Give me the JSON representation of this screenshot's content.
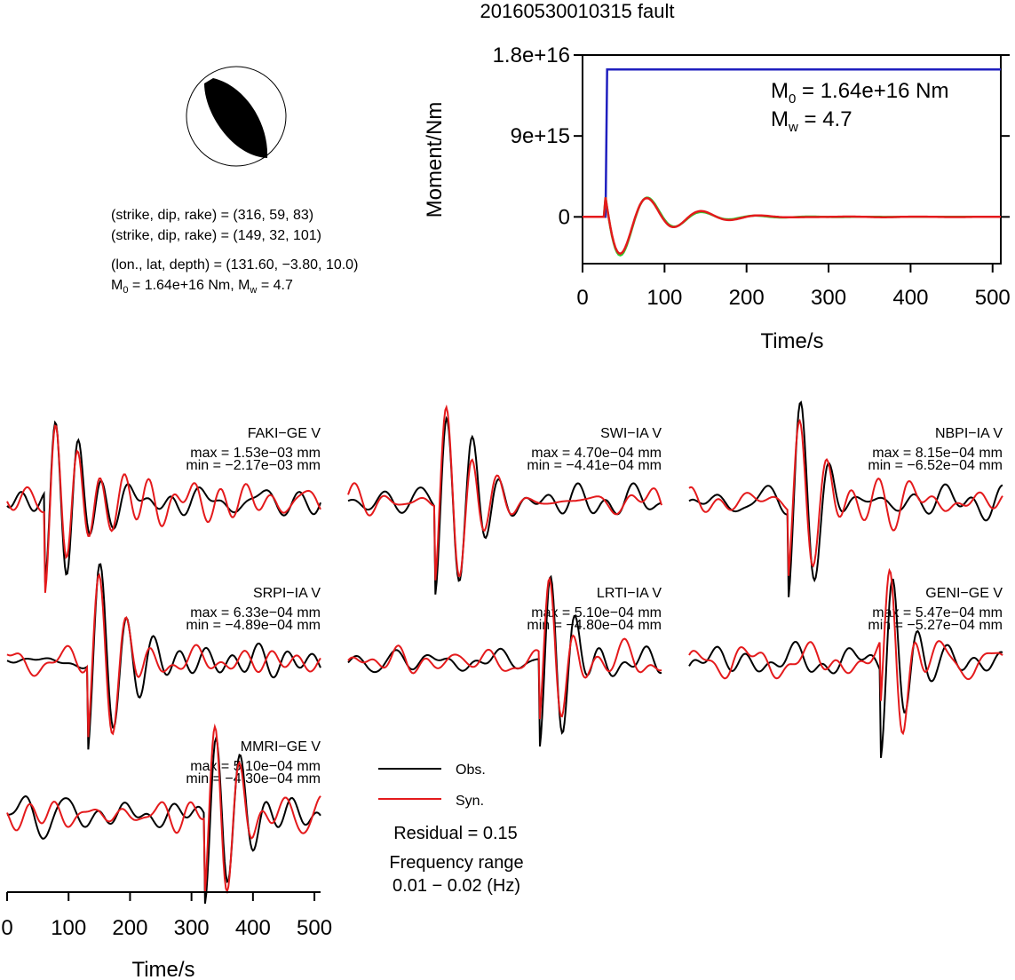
{
  "title": "20160530010315 fault",
  "mechanism": {
    "np1": "(strike, dip, rake) = (316, 59, 83)",
    "np2": "(strike, dip, rake) = (149, 32, 101)",
    "location": "(lon., lat, depth) = (131.60, −3.80, 10.0)",
    "moment_line": {
      "m0_label": "M",
      "m0_sub": "0",
      "m0_value": " = 1.64e+16 Nm, M",
      "mw_sub": "w",
      "mw_value": " = 4.7"
    }
  },
  "legend": {
    "obs": "Obs.",
    "syn": "Syn.",
    "residual": "Residual = 0.15",
    "freq_title": "Frequency range",
    "freq_value": "0.01 − 0.02 (Hz)"
  },
  "colors": {
    "obs": "#000000",
    "syn": "#e41a1c",
    "moment": "#1f1fbf",
    "stf_green": "#2ecc2e"
  },
  "chart_data": [
    {
      "type": "line",
      "name": "moment",
      "ylabel": "Moment/Nm",
      "xlabel": "Time/s",
      "xlim": [
        0,
        510
      ],
      "ylim": [
        -5200000000000000.0,
        1.8e+16
      ],
      "xticks": [
        0,
        100,
        200,
        300,
        400,
        500
      ],
      "yticks": [
        {
          "v": 0,
          "label": "0"
        },
        {
          "v": 9000000000000000.0,
          "label": "9e+15"
        },
        {
          "v": 1.8e+16,
          "label": "1.8e+16"
        }
      ],
      "annotation": {
        "m0_main": "M",
        "m0_sub": "0",
        "m0_rest": " = 1.64e+16 Nm",
        "mw_main": "M",
        "mw_sub": "w",
        "mw_rest": " = 4.7"
      },
      "cumulative_moment": {
        "x": [
          0,
          28,
          30,
          510
        ],
        "y": [
          0,
          0,
          1.64e+16,
          1.64e+16
        ]
      },
      "stf": {
        "start": 28,
        "amplitude": 4100000000000000.0,
        "period": 66,
        "decay": 48
      }
    },
    {
      "type": "line",
      "name": "waveforms",
      "xlabel": "Time/s",
      "xlim": [
        0,
        510
      ],
      "xticks": [
        0,
        100,
        200,
        300,
        400,
        500
      ],
      "units": "mm",
      "stations": [
        {
          "label": "FAKI−GE V",
          "max": "max = 1.53e−03 mm",
          "min": "min = −2.17e−03 mm",
          "arrival": 70,
          "period": 38,
          "decay": 55,
          "amp": 1.0,
          "mismatch": 0.08,
          "seed": 3
        },
        {
          "label": "SWI−IA V",
          "max": "max = 4.70e−04 mm",
          "min": "min = −4.41e−04 mm",
          "arrival": 150,
          "period": 42,
          "decay": 70,
          "amp": 1.0,
          "mismatch": 0.15,
          "seed": 7
        },
        {
          "label": "NBPI−IA V",
          "max": "max = 8.15e−04 mm",
          "min": "min = −6.52e−04 mm",
          "arrival": 170,
          "period": 45,
          "decay": 60,
          "amp": 1.0,
          "mismatch": 0.25,
          "seed": 11
        },
        {
          "label": "SRPI−IA V",
          "max": "max = 6.33e−04 mm",
          "min": "min = −4.89e−04 mm",
          "arrival": 140,
          "period": 45,
          "decay": 65,
          "amp": 1.0,
          "mismatch": 0.12,
          "seed": 5
        },
        {
          "label": "LRTI−IA V",
          "max": "max = 5.10e−04 mm",
          "min": "min = −4.80e−04 mm",
          "arrival": 320,
          "period": 40,
          "decay": 45,
          "amp": 1.0,
          "mismatch": 0.35,
          "seed": 13
        },
        {
          "label": "GENI−GE V",
          "max": "max = 5.47e−04 mm",
          "min": "min = −5.27e−04 mm",
          "arrival": 320,
          "period": 42,
          "decay": 45,
          "amp": 1.0,
          "mismatch": 0.4,
          "seed": 17
        },
        {
          "label": "MMRI−GE V",
          "max": "max = 5.10e−04 mm",
          "min": "min = −4.30e−04 mm",
          "arrival": 330,
          "period": 40,
          "decay": 55,
          "amp": 1.0,
          "mismatch": 0.2,
          "seed": 19
        }
      ]
    }
  ]
}
